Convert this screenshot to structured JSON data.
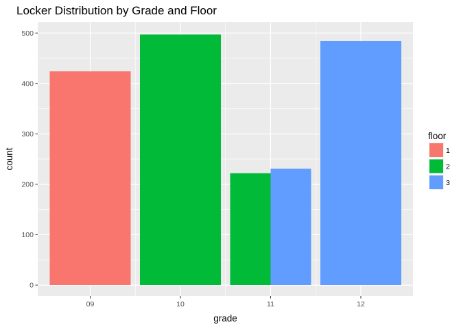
{
  "chart_data": {
    "type": "bar",
    "title": "Locker Distribution by Grade and Floor",
    "xlabel": "grade",
    "ylabel": "count",
    "ylim": [
      0,
      520
    ],
    "y_ticks": [
      0,
      100,
      200,
      300,
      400,
      500
    ],
    "categories": [
      "09",
      "10",
      "11",
      "12"
    ],
    "grid": true,
    "stacked": false,
    "dodge": true,
    "legend": {
      "title": "floor",
      "position": "right",
      "entries": [
        {
          "label": "1",
          "color": "#F8766D"
        },
        {
          "label": "2",
          "color": "#00BA38"
        },
        {
          "label": "3",
          "color": "#619CFF"
        }
      ]
    },
    "bars": [
      {
        "category": "09",
        "floor": "1",
        "value": 424
      },
      {
        "category": "10",
        "floor": "2",
        "value": 497
      },
      {
        "category": "11",
        "floor": "2",
        "value": 222
      },
      {
        "category": "11",
        "floor": "3",
        "value": 231
      },
      {
        "category": "12",
        "floor": "3",
        "value": 484
      }
    ],
    "panel_color": "#EBEBEB",
    "grid_color": "#FFFFFF"
  }
}
